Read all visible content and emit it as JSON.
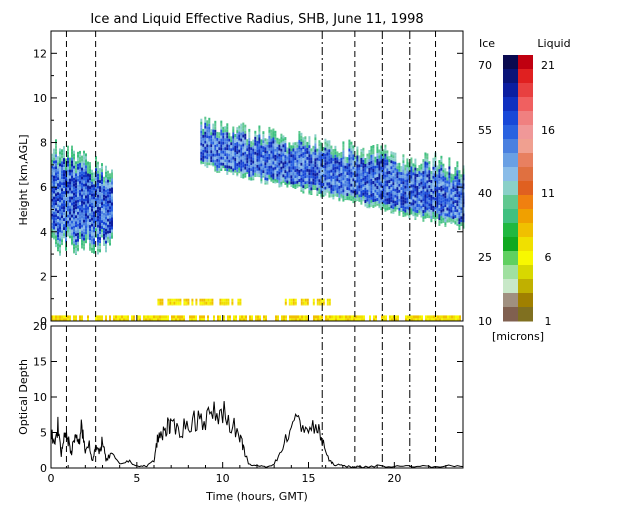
{
  "chart_data": [
    {
      "type": "heatmap",
      "title": "Ice and Liquid Effective Radius, SHB, June 11, 1998",
      "ylabel": "Height [km,AGL]",
      "xlim": [
        0,
        24
      ],
      "ylim": [
        0,
        13
      ],
      "y_ticks": [
        0,
        2,
        4,
        6,
        8,
        10,
        12
      ],
      "grid": false,
      "vertical_lines_hours": {
        "dashed": [
          0.9,
          2.6,
          17.7,
          22.4
        ],
        "dash_dot": [
          15.8,
          19.3,
          20.9
        ]
      },
      "regions": [
        {
          "phase": "ice",
          "t_start": 0.0,
          "t_end": 3.5,
          "base_km": 3.5,
          "top_km": 7.5
        },
        {
          "phase": "ice",
          "t_start": 8.7,
          "t_end": 24.0,
          "base_km": 4.0,
          "top_km": 8.3
        },
        {
          "phase": "liquid",
          "t_start": 6.2,
          "t_end": 11.2,
          "base_km": 0.7,
          "top_km": 1.0
        },
        {
          "phase": "liquid",
          "t_start": 13.5,
          "t_end": 16.2,
          "base_km": 0.7,
          "top_km": 1.0
        },
        {
          "phase": "liquid",
          "t_start": 0.0,
          "t_end": 24.0,
          "base_km": 0.0,
          "top_km": 0.25
        }
      ],
      "colorbar": {
        "ice_label": "Ice",
        "liquid_label": "Liquid",
        "units": "[microns]",
        "ice_ticks": [
          70,
          55,
          40,
          25,
          10
        ],
        "liquid_ticks": [
          21,
          16,
          11,
          6,
          1
        ],
        "ice_colors": [
          "#0a0a50",
          "#0a1478",
          "#0c1ea0",
          "#1030c0",
          "#1848d8",
          "#2a62e0",
          "#4a80e0",
          "#6aa0e4",
          "#8abce8",
          "#8ad0c8",
          "#60c890",
          "#40c080",
          "#20b840",
          "#10a820",
          "#60d060",
          "#a0e0a0",
          "#c8e8c8",
          "#a09080",
          "#806050"
        ],
        "liquid_colors": [
          "#c00010",
          "#e02020",
          "#e84040",
          "#f06060",
          "#f08080",
          "#f09898",
          "#f0a090",
          "#e88060",
          "#e07040",
          "#e06020",
          "#f08010",
          "#f0a000",
          "#f0c000",
          "#f0e000",
          "#f8f800",
          "#d8d800",
          "#c0b000",
          "#a08000",
          "#807020"
        ]
      }
    },
    {
      "type": "line",
      "xlabel": "Time (hours, GMT)",
      "ylabel": "Optical Depth",
      "xlim": [
        0,
        24
      ],
      "ylim": [
        0,
        20
      ],
      "x_ticks": [
        0,
        5,
        10,
        15,
        20
      ],
      "y_ticks": [
        0,
        5,
        10,
        15,
        20
      ],
      "grid": false,
      "series": [
        {
          "x": [
            0,
            0.2,
            0.4,
            0.6,
            0.8,
            1.0,
            1.2,
            1.4,
            1.6,
            1.8,
            2.0,
            2.2,
            2.4,
            2.6,
            2.8,
            3.0,
            3.2,
            3.5,
            4.0,
            4.5,
            5.0,
            5.5,
            6.0,
            6.2,
            6.5,
            6.8,
            7.0,
            7.5,
            8.0,
            8.5,
            9.0,
            9.5,
            10.0,
            10.5,
            11.0,
            11.2,
            11.5,
            12.0,
            12.5,
            13.0,
            13.5,
            14.0,
            14.5,
            15.0,
            15.5,
            15.8,
            16.2,
            16.5,
            17.0,
            17.5,
            18.0,
            19.0,
            20.0,
            21.0,
            22.0,
            23.0,
            24.0
          ],
          "values": [
            5,
            3,
            6,
            2,
            5,
            4,
            2,
            5,
            3,
            6,
            2,
            4,
            1,
            3,
            2,
            4,
            1,
            2,
            0.5,
            1,
            0.3,
            0.2,
            1,
            4,
            5,
            6,
            5.5,
            5.5,
            6,
            7,
            7,
            7.5,
            8,
            6.5,
            4,
            3,
            0.5,
            0.3,
            0.2,
            0.5,
            3,
            6,
            6.5,
            5.5,
            5.5,
            4,
            1,
            0.5,
            0.3,
            0.2,
            0.1,
            0.3,
            0.2,
            0.3,
            0.2,
            0.3,
            0.2
          ]
        }
      ],
      "vertical_lines_hours": {
        "dashed": [
          0.9,
          2.6,
          17.7,
          22.4
        ],
        "dash_dot": [
          15.8,
          19.3,
          20.9
        ]
      }
    }
  ]
}
